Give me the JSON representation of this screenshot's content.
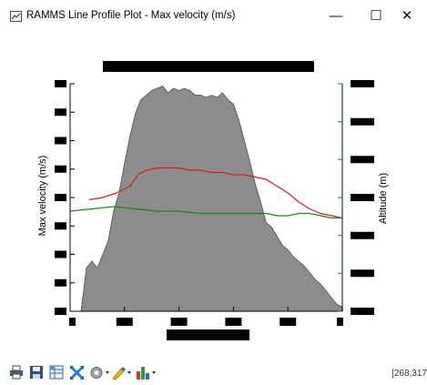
{
  "window": {
    "title": "RAMMS Line Profile Plot - Max velocity (m/s)",
    "controls": {
      "minimize": "—",
      "maximize": "☐",
      "close": "✕"
    }
  },
  "plot": {
    "left_axis_label": "Max velocity (m/s)",
    "right_axis_label": "Altitude (m)"
  },
  "status": {
    "coords": "[268,317"
  },
  "colors": {
    "terrain_fill": "#8c8c8c",
    "red_series": "#e01818",
    "green_series": "#138a13",
    "right_axis": "#2b5d8f",
    "redaction": "#000000"
  },
  "toolbar": [
    {
      "name": "print-icon"
    },
    {
      "name": "save-icon"
    },
    {
      "name": "table-icon"
    },
    {
      "name": "zoom-icon"
    },
    {
      "name": "settings-icon"
    },
    {
      "name": "color-icon"
    },
    {
      "name": "chart-icon"
    }
  ],
  "chart_data": {
    "type": "line",
    "title": "",
    "xlabel": "",
    "ylabel": "Max velocity (m/s)",
    "y2label": "Altitude (m)",
    "xlim": [
      0,
      1
    ],
    "ylim": [
      0,
      1
    ],
    "note_values": "axis tick values are redacted in the original, so data are in normalised units",
    "series": [
      {
        "kind": "area",
        "axis": "right",
        "x": [
          0.0,
          0.04,
          0.06,
          0.08,
          0.1,
          0.12,
          0.14,
          0.16,
          0.18,
          0.2,
          0.22,
          0.24,
          0.26,
          0.28,
          0.3,
          0.32,
          0.34,
          0.36,
          0.38,
          0.4,
          0.42,
          0.44,
          0.46,
          0.48,
          0.5,
          0.52,
          0.54,
          0.56,
          0.58,
          0.6,
          0.62,
          0.64,
          0.66,
          0.68,
          0.7,
          0.72,
          0.74,
          0.76,
          0.78,
          0.8,
          0.82,
          0.84,
          0.86,
          0.88,
          0.9,
          0.92,
          0.94,
          0.96,
          0.98,
          1.0
        ],
        "values": [
          0.0,
          0.0,
          0.19,
          0.22,
          0.19,
          0.25,
          0.31,
          0.44,
          0.52,
          0.65,
          0.77,
          0.87,
          0.93,
          0.95,
          0.97,
          0.98,
          0.99,
          0.96,
          0.98,
          0.97,
          0.98,
          0.97,
          0.95,
          0.95,
          0.94,
          0.95,
          0.94,
          0.96,
          0.93,
          0.91,
          0.84,
          0.75,
          0.66,
          0.56,
          0.48,
          0.39,
          0.37,
          0.33,
          0.29,
          0.27,
          0.24,
          0.22,
          0.2,
          0.17,
          0.14,
          0.12,
          0.09,
          0.06,
          0.03,
          0.02
        ]
      },
      {
        "kind": "line",
        "axis": "left",
        "x": [
          0.07,
          0.12,
          0.17,
          0.22,
          0.25,
          0.28,
          0.32,
          0.36,
          0.4,
          0.44,
          0.48,
          0.52,
          0.56,
          0.6,
          0.64,
          0.68,
          0.72,
          0.76,
          0.8,
          0.84,
          0.88,
          0.92,
          0.96,
          1.0
        ],
        "values": [
          0.49,
          0.5,
          0.52,
          0.55,
          0.6,
          0.62,
          0.63,
          0.63,
          0.63,
          0.62,
          0.62,
          0.61,
          0.61,
          0.6,
          0.6,
          0.59,
          0.58,
          0.55,
          0.52,
          0.48,
          0.45,
          0.43,
          0.42,
          0.41
        ]
      },
      {
        "kind": "line",
        "axis": "left",
        "x": [
          0.0,
          0.08,
          0.16,
          0.24,
          0.32,
          0.4,
          0.48,
          0.56,
          0.64,
          0.72,
          0.76,
          0.8,
          0.84,
          0.88,
          0.92,
          0.96,
          1.0
        ],
        "values": [
          0.44,
          0.45,
          0.46,
          0.45,
          0.44,
          0.44,
          0.43,
          0.43,
          0.43,
          0.43,
          0.42,
          0.42,
          0.43,
          0.43,
          0.42,
          0.41,
          0.41
        ]
      }
    ],
    "x_ticks": [
      0.0,
      0.2,
      0.4,
      0.6,
      0.8,
      1.0
    ],
    "left_ticks": [
      0.0,
      0.125,
      0.25,
      0.375,
      0.5,
      0.625,
      0.75,
      0.875,
      1.0
    ],
    "right_ticks": [
      0.0,
      0.167,
      0.333,
      0.5,
      0.667,
      0.833,
      1.0
    ],
    "grid": false,
    "legend": "none"
  }
}
